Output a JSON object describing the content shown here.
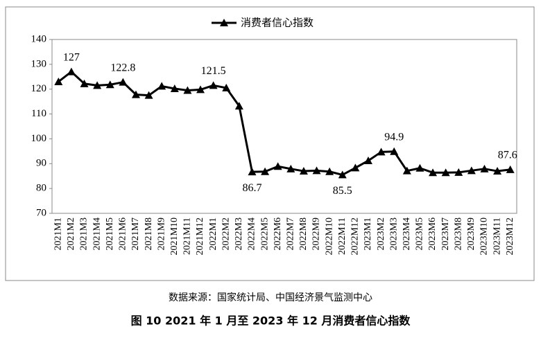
{
  "chart_data": {
    "type": "line",
    "legend": "消费者信心指数",
    "source": "数据来源：国家统计局、中国经济景气监测中心",
    "title": "图 10  2021 年 1 月至 2023 年 12 月消费者信心指数",
    "categories": [
      "2021M1",
      "2021M2",
      "2021M3",
      "2021M4",
      "2021M5",
      "2021M6",
      "2021M7",
      "2021M8",
      "2021M9",
      "2021M10",
      "2021M11",
      "2021M12",
      "2022M1",
      "2022M2",
      "2022M3",
      "2022M4",
      "2022M5",
      "2022M6",
      "2022M7",
      "2022M8",
      "2022M9",
      "2022M10",
      "2022M11",
      "2022M12",
      "2023M1",
      "2023M2",
      "2023M3",
      "2023M4",
      "2023M5",
      "2023M6",
      "2023M7",
      "2023M8",
      "2023M9",
      "2023M10",
      "2023M11",
      "2023M12"
    ],
    "values": [
      123,
      127,
      122.2,
      121.5,
      121.8,
      122.8,
      117.8,
      117.5,
      121.2,
      120.2,
      119.5,
      119.8,
      121.5,
      120.5,
      113.2,
      86.7,
      86.8,
      88.9,
      87.9,
      87.0,
      87.2,
      86.8,
      85.5,
      88.3,
      91.2,
      94.7,
      94.9,
      87.1,
      88.2,
      86.4,
      86.4,
      86.5,
      87.2,
      87.9,
      87.0,
      87.6
    ],
    "annotated": [
      1,
      5,
      12,
      15,
      22,
      26,
      35
    ],
    "color": "#000000",
    "ylim": [
      70,
      140
    ],
    "yticks": [
      70,
      80,
      90,
      100,
      110,
      120,
      130,
      140
    ]
  }
}
